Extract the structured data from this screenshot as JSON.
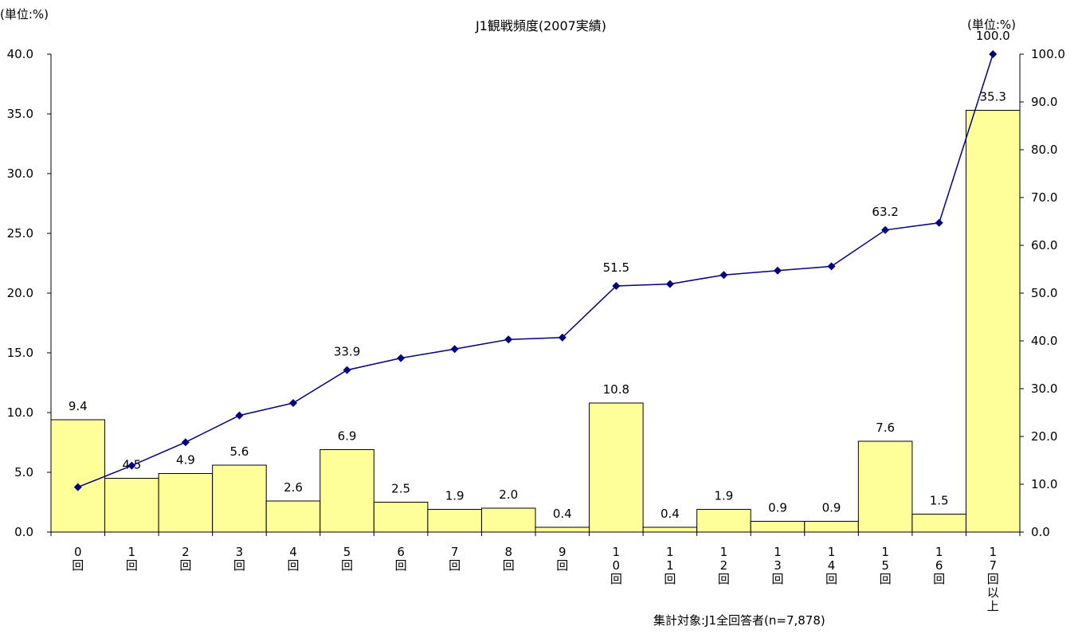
{
  "chart_data": {
    "type": "bar+line",
    "title": "J1観戦頻度(2007実績)",
    "left_unit_label": "(単位:%)",
    "right_unit_label": "(単位:%)",
    "footnote": "集計対象:J1全回答者(n=7,878)",
    "categories": [
      "0回",
      "1回",
      "2回",
      "3回",
      "4回",
      "5回",
      "6回",
      "7回",
      "8回",
      "9回",
      "10回",
      "11回",
      "12回",
      "13回",
      "14回",
      "15回",
      "16回",
      "17回以上"
    ],
    "bar_series": {
      "axis": "left",
      "values": [
        9.4,
        4.5,
        4.9,
        5.6,
        2.6,
        6.9,
        2.5,
        1.9,
        2.0,
        0.4,
        10.8,
        0.4,
        1.9,
        0.9,
        0.9,
        7.6,
        1.5,
        35.3
      ],
      "labels": [
        "9.4",
        "4.5",
        "4.9",
        "5.6",
        "2.6",
        "6.9",
        "2.5",
        "1.9",
        "2.0",
        "0.4",
        "10.8",
        "0.4",
        "1.9",
        "0.9",
        "0.9",
        "7.6",
        "1.5",
        "35.3"
      ]
    },
    "line_series": {
      "axis": "right",
      "values": [
        9.4,
        13.9,
        18.8,
        24.4,
        27.0,
        33.9,
        36.4,
        38.3,
        40.3,
        40.7,
        51.5,
        51.9,
        53.8,
        54.7,
        55.6,
        63.2,
        64.7,
        100.0
      ],
      "labels": [
        "",
        "",
        "",
        "",
        "",
        "33.9",
        "",
        "",
        "",
        "",
        "51.5",
        "",
        "",
        "",
        "",
        "63.2",
        "",
        "100.0"
      ]
    },
    "y_left": {
      "min": 0,
      "max": 40,
      "ticks": [
        "0.0",
        "5.0",
        "10.0",
        "15.0",
        "20.0",
        "25.0",
        "30.0",
        "35.0",
        "40.0"
      ]
    },
    "y_right": {
      "min": 0,
      "max": 100,
      "ticks": [
        "0.0",
        "10.0",
        "20.0",
        "30.0",
        "40.0",
        "50.0",
        "60.0",
        "70.0",
        "80.0",
        "90.0",
        "100.0"
      ]
    },
    "colors": {
      "bar_fill": "#ffff99",
      "bar_stroke": "#000000",
      "line": "#000080",
      "marker": "#000080",
      "axis": "#000000"
    },
    "grid": false,
    "legend": "none"
  }
}
